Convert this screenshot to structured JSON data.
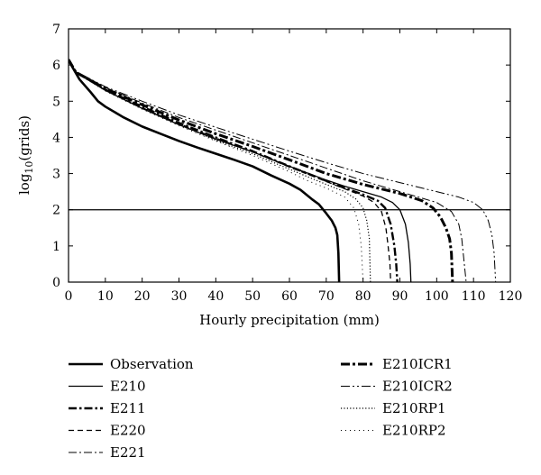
{
  "chart_data": {
    "type": "line",
    "title": "",
    "xlabel": "Hourly precipitation (mm)",
    "ylabel": {
      "base": "log",
      "sub": "10",
      "rest": "(grids)"
    },
    "xlim": [
      0,
      120
    ],
    "ylim": [
      0,
      7
    ],
    "xticks": [
      0,
      10,
      20,
      30,
      40,
      50,
      60,
      70,
      80,
      90,
      100,
      110,
      120
    ],
    "yticks": [
      0,
      1,
      2,
      3,
      4,
      5,
      6,
      7
    ],
    "grid": false,
    "reference_line": {
      "y": 2
    },
    "legend_position": "below",
    "series": [
      {
        "name": "Observation",
        "style": "solid-thick",
        "points": [
          [
            0,
            6.15
          ],
          [
            1,
            5.95
          ],
          [
            3,
            5.6
          ],
          [
            6,
            5.25
          ],
          [
            8,
            5.0
          ],
          [
            10,
            4.85
          ],
          [
            15,
            4.55
          ],
          [
            20,
            4.3
          ],
          [
            25,
            4.1
          ],
          [
            30,
            3.9
          ],
          [
            35,
            3.72
          ],
          [
            40,
            3.55
          ],
          [
            45,
            3.38
          ],
          [
            50,
            3.2
          ],
          [
            55,
            2.95
          ],
          [
            60,
            2.72
          ],
          [
            63,
            2.55
          ],
          [
            66,
            2.3
          ],
          [
            68,
            2.15
          ],
          [
            70,
            1.9
          ],
          [
            71.5,
            1.7
          ],
          [
            72.5,
            1.5
          ],
          [
            73,
            1.3
          ],
          [
            73.3,
            0.8
          ],
          [
            73.5,
            0
          ]
        ]
      },
      {
        "name": "E210",
        "style": "solid-thin",
        "points": [
          [
            0,
            6.15
          ],
          [
            2,
            5.8
          ],
          [
            10,
            5.3
          ],
          [
            20,
            4.8
          ],
          [
            30,
            4.35
          ],
          [
            40,
            3.95
          ],
          [
            50,
            3.6
          ],
          [
            60,
            3.2
          ],
          [
            70,
            2.82
          ],
          [
            75,
            2.65
          ],
          [
            80,
            2.5
          ],
          [
            85,
            2.35
          ],
          [
            88,
            2.2
          ],
          [
            90,
            2.0
          ],
          [
            91.5,
            1.6
          ],
          [
            92.3,
            1.1
          ],
          [
            92.8,
            0.5
          ],
          [
            93,
            0
          ]
        ]
      },
      {
        "name": "E211",
        "style": "dashdot-thick",
        "points": [
          [
            0,
            6.15
          ],
          [
            2,
            5.8
          ],
          [
            10,
            5.32
          ],
          [
            20,
            4.85
          ],
          [
            30,
            4.4
          ],
          [
            40,
            4.0
          ],
          [
            50,
            3.62
          ],
          [
            60,
            3.2
          ],
          [
            70,
            2.8
          ],
          [
            75,
            2.6
          ],
          [
            80,
            2.42
          ],
          [
            84,
            2.25
          ],
          [
            86,
            2.05
          ],
          [
            87.5,
            1.6
          ],
          [
            88.5,
            1.0
          ],
          [
            89,
            0.5
          ],
          [
            89.3,
            0
          ]
        ]
      },
      {
        "name": "E220",
        "style": "dashed",
        "points": [
          [
            0,
            6.15
          ],
          [
            2,
            5.8
          ],
          [
            10,
            5.3
          ],
          [
            20,
            4.82
          ],
          [
            30,
            4.38
          ],
          [
            40,
            3.98
          ],
          [
            50,
            3.6
          ],
          [
            60,
            3.18
          ],
          [
            70,
            2.78
          ],
          [
            75,
            2.58
          ],
          [
            80,
            2.38
          ],
          [
            83,
            2.2
          ],
          [
            85,
            1.95
          ],
          [
            86.2,
            1.5
          ],
          [
            86.8,
            1.0
          ],
          [
            87.3,
            0.5
          ],
          [
            87.5,
            0
          ]
        ]
      },
      {
        "name": "E221",
        "style": "dashdot-thin",
        "points": [
          [
            0,
            6.15
          ],
          [
            2,
            5.82
          ],
          [
            10,
            5.38
          ],
          [
            20,
            4.95
          ],
          [
            30,
            4.55
          ],
          [
            40,
            4.2
          ],
          [
            50,
            3.85
          ],
          [
            60,
            3.5
          ],
          [
            70,
            3.15
          ],
          [
            80,
            2.8
          ],
          [
            90,
            2.5
          ],
          [
            95,
            2.35
          ],
          [
            100,
            2.2
          ],
          [
            104,
            1.95
          ],
          [
            106,
            1.6
          ],
          [
            106.8,
            1.2
          ],
          [
            107.5,
            0.5
          ],
          [
            108,
            0
          ]
        ]
      },
      {
        "name": "E210ICR1",
        "style": "dashdot-bold",
        "points": [
          [
            0,
            6.15
          ],
          [
            2,
            5.8
          ],
          [
            10,
            5.35
          ],
          [
            20,
            4.9
          ],
          [
            30,
            4.48
          ],
          [
            40,
            4.1
          ],
          [
            50,
            3.75
          ],
          [
            60,
            3.38
          ],
          [
            70,
            3.0
          ],
          [
            80,
            2.7
          ],
          [
            90,
            2.45
          ],
          [
            96,
            2.25
          ],
          [
            99,
            2.05
          ],
          [
            101,
            1.8
          ],
          [
            102.5,
            1.5
          ],
          [
            103.5,
            1.2
          ],
          [
            104,
            0.8
          ],
          [
            104.3,
            0
          ]
        ]
      },
      {
        "name": "E210ICR2",
        "style": "dashdotdot-thin",
        "points": [
          [
            0,
            6.15
          ],
          [
            2,
            5.82
          ],
          [
            10,
            5.4
          ],
          [
            20,
            5.0
          ],
          [
            30,
            4.62
          ],
          [
            40,
            4.28
          ],
          [
            50,
            3.95
          ],
          [
            60,
            3.62
          ],
          [
            70,
            3.3
          ],
          [
            80,
            3.0
          ],
          [
            90,
            2.75
          ],
          [
            100,
            2.5
          ],
          [
            106,
            2.35
          ],
          [
            110,
            2.2
          ],
          [
            112.5,
            2.0
          ],
          [
            114,
            1.7
          ],
          [
            115,
            1.3
          ],
          [
            115.6,
            0.8
          ],
          [
            116,
            0
          ]
        ]
      },
      {
        "name": "E210RP1",
        "style": "dotted",
        "points": [
          [
            0,
            6.15
          ],
          [
            2,
            5.8
          ],
          [
            10,
            5.3
          ],
          [
            20,
            4.8
          ],
          [
            30,
            4.35
          ],
          [
            40,
            3.92
          ],
          [
            50,
            3.55
          ],
          [
            60,
            3.12
          ],
          [
            70,
            2.7
          ],
          [
            75,
            2.5
          ],
          [
            78,
            2.3
          ],
          [
            80,
            2.05
          ],
          [
            81,
            1.7
          ],
          [
            81.7,
            1.2
          ],
          [
            82,
            0
          ]
        ]
      },
      {
        "name": "E210RP2",
        "style": "dotted-sparse",
        "points": [
          [
            0,
            6.15
          ],
          [
            2,
            5.8
          ],
          [
            10,
            5.28
          ],
          [
            20,
            4.78
          ],
          [
            30,
            4.32
          ],
          [
            40,
            3.9
          ],
          [
            50,
            3.5
          ],
          [
            60,
            3.05
          ],
          [
            65,
            2.8
          ],
          [
            70,
            2.6
          ],
          [
            75,
            2.35
          ],
          [
            77.5,
            2.05
          ],
          [
            78.8,
            1.6
          ],
          [
            79.5,
            1.0
          ],
          [
            80,
            0
          ]
        ]
      }
    ]
  }
}
